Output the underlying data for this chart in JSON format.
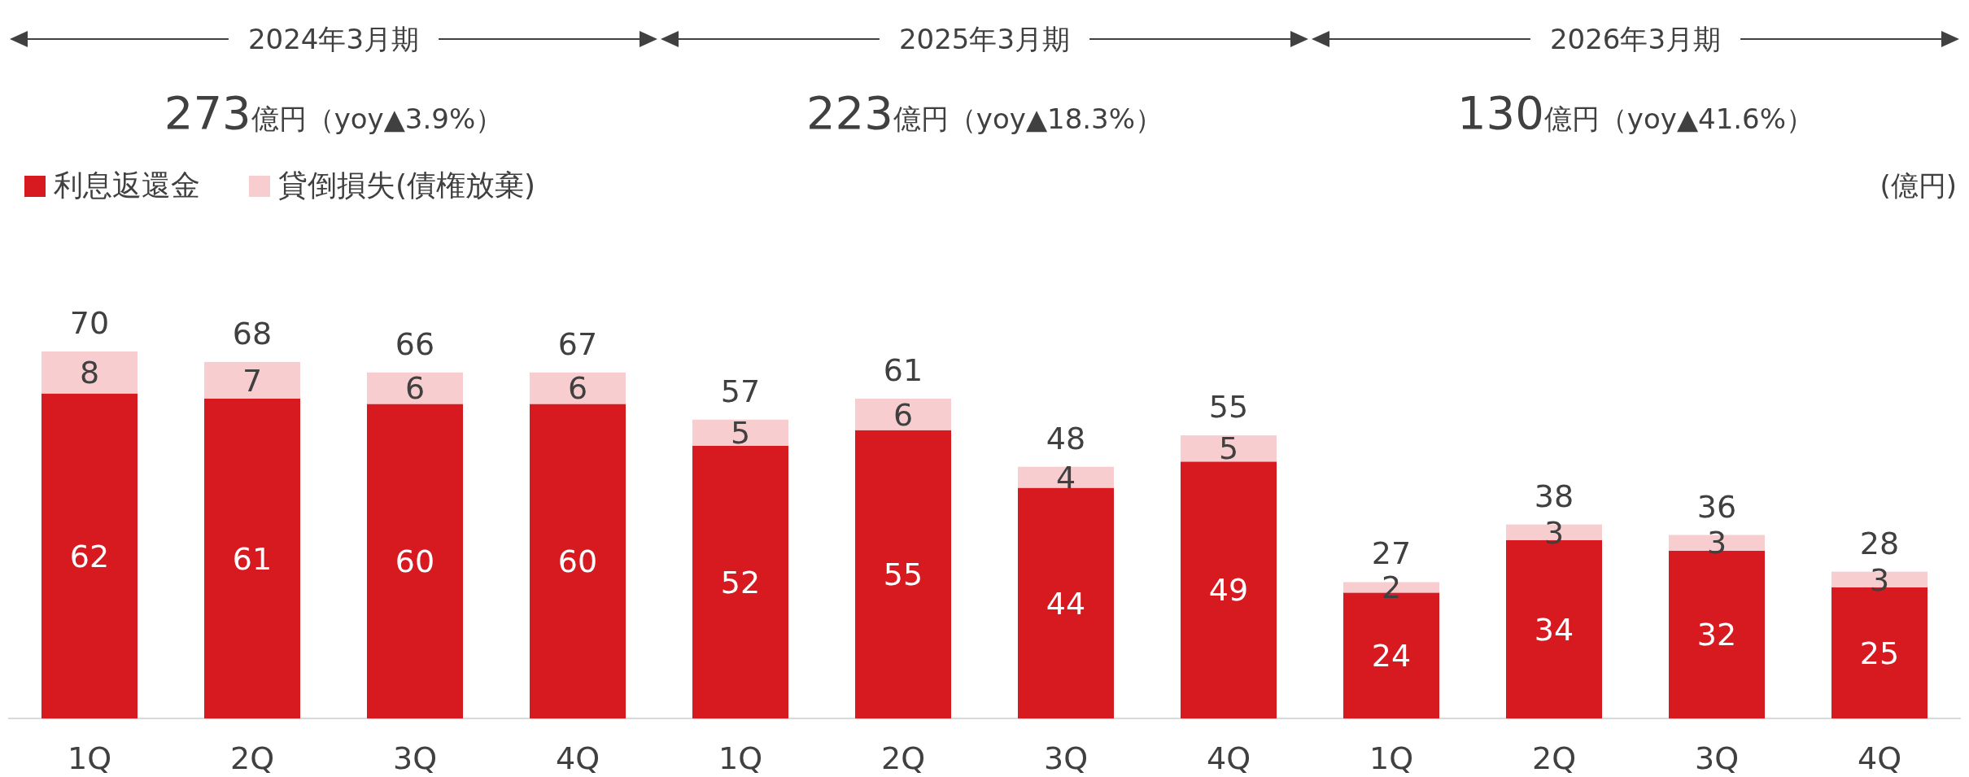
{
  "chart_data": {
    "type": "bar",
    "stacked": true,
    "data_labels": true,
    "legend": "top left",
    "categories": [
      "1Q",
      "2Q",
      "3Q",
      "4Q",
      "1Q",
      "2Q",
      "3Q",
      "4Q",
      "1Q",
      "2Q",
      "3Q",
      "4Q"
    ],
    "series": [
      {
        "name": "利息返還金",
        "color": "#d71920",
        "values": [
          62,
          61,
          60,
          60,
          52,
          55,
          44,
          49,
          24,
          34,
          32,
          25
        ]
      },
      {
        "name": "貸倒損失(債権放棄)",
        "color": "#f8cdd0",
        "values": [
          8,
          7,
          6,
          6,
          5,
          6,
          4,
          5,
          2,
          3,
          3,
          3
        ]
      }
    ],
    "totals": [
      "70",
      "68",
      "66",
      "67",
      "57",
      "61",
      "48",
      "55",
      "27",
      "38",
      "36",
      "28"
    ],
    "annotations": [
      "2024年3月期",
      "273億円（yoy▲3.9%）",
      "2025年3月期",
      "223億円（yoy▲18.3%）",
      "2026年3月期",
      "130億円（yoy▲41.6%）",
      "(億円)"
    ]
  }
}
